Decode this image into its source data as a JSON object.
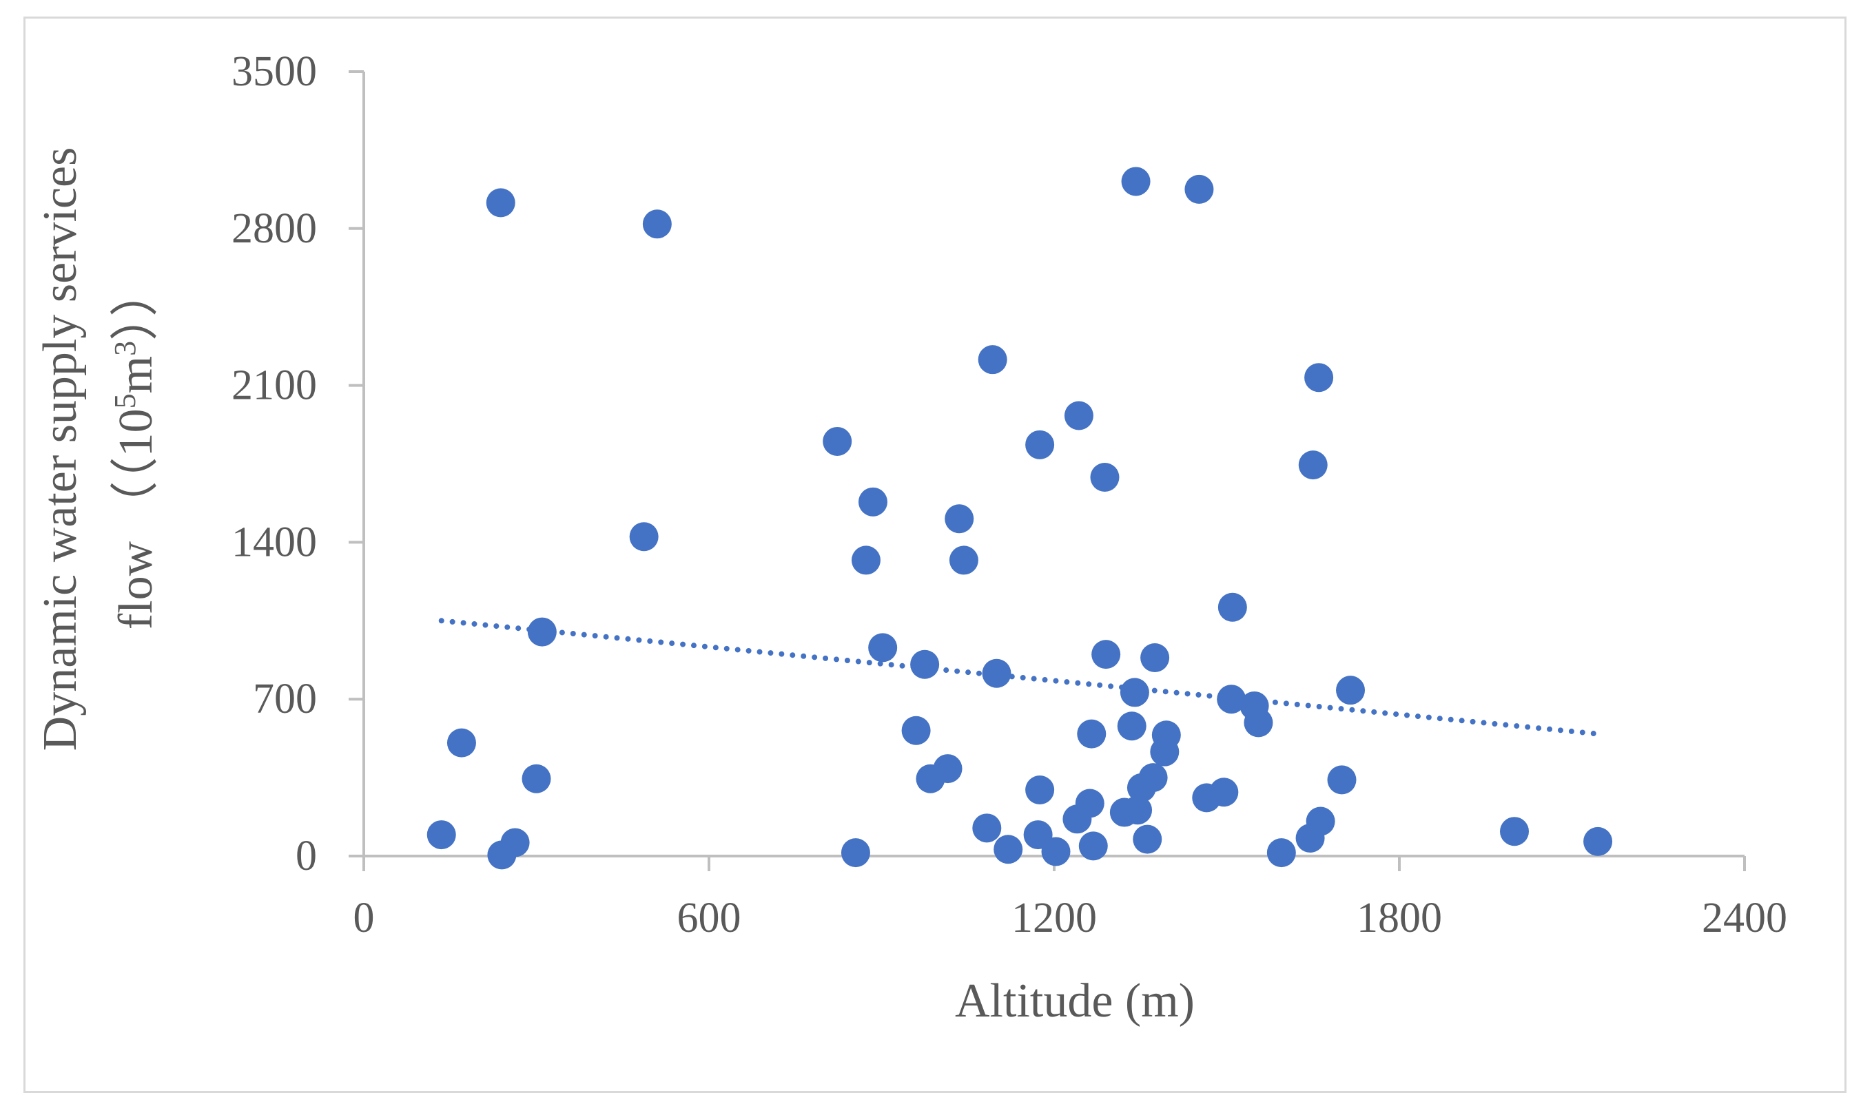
{
  "chart_data": {
    "type": "scatter",
    "xlabel": "Altitude (m)",
    "ylabel": {
      "line1": "Dynamic water supply services",
      "line2_prefix": "flow （（10",
      "line2_sup1": "5",
      "line2_mid": "m",
      "line2_sup2": "3",
      "line2_suffix": "））"
    },
    "xlim": [
      0,
      2400
    ],
    "ylim": [
      0,
      3500
    ],
    "xticks": [
      "0",
      "600",
      "1200",
      "1800",
      "2400"
    ],
    "xtick_values": [
      0,
      600,
      1200,
      1800,
      2400
    ],
    "yticks": [
      "0",
      "700",
      "1400",
      "2100",
      "2800",
      "3500"
    ],
    "ytick_values": [
      0,
      700,
      1400,
      2100,
      2800,
      3500
    ],
    "grid": false,
    "legend": "none",
    "marker_color": "#4472c4",
    "trendline": {
      "style": "dotted",
      "x": [
        135,
        2145
      ],
      "y": [
        1050,
        545
      ]
    },
    "points": [
      {
        "x": 135,
        "y": 95
      },
      {
        "x": 170,
        "y": 505
      },
      {
        "x": 238,
        "y": 2915
      },
      {
        "x": 240,
        "y": 5
      },
      {
        "x": 263,
        "y": 60
      },
      {
        "x": 300,
        "y": 345
      },
      {
        "x": 310,
        "y": 1000
      },
      {
        "x": 487,
        "y": 1425
      },
      {
        "x": 510,
        "y": 2820
      },
      {
        "x": 823,
        "y": 1850
      },
      {
        "x": 855,
        "y": 15
      },
      {
        "x": 873,
        "y": 1320
      },
      {
        "x": 885,
        "y": 1580
      },
      {
        "x": 902,
        "y": 930
      },
      {
        "x": 960,
        "y": 560
      },
      {
        "x": 975,
        "y": 855
      },
      {
        "x": 985,
        "y": 345
      },
      {
        "x": 1015,
        "y": 390
      },
      {
        "x": 1035,
        "y": 1505
      },
      {
        "x": 1043,
        "y": 1320
      },
      {
        "x": 1083,
        "y": 125
      },
      {
        "x": 1093,
        "y": 2215
      },
      {
        "x": 1100,
        "y": 815
      },
      {
        "x": 1120,
        "y": 30
      },
      {
        "x": 1172,
        "y": 95
      },
      {
        "x": 1175,
        "y": 295
      },
      {
        "x": 1175,
        "y": 1835
      },
      {
        "x": 1203,
        "y": 20
      },
      {
        "x": 1240,
        "y": 165
      },
      {
        "x": 1243,
        "y": 1965
      },
      {
        "x": 1262,
        "y": 235
      },
      {
        "x": 1265,
        "y": 545
      },
      {
        "x": 1268,
        "y": 45
      },
      {
        "x": 1288,
        "y": 1690
      },
      {
        "x": 1290,
        "y": 900
      },
      {
        "x": 1322,
        "y": 195
      },
      {
        "x": 1335,
        "y": 580
      },
      {
        "x": 1340,
        "y": 730
      },
      {
        "x": 1342,
        "y": 3010
      },
      {
        "x": 1345,
        "y": 205
      },
      {
        "x": 1352,
        "y": 305
      },
      {
        "x": 1362,
        "y": 75
      },
      {
        "x": 1372,
        "y": 350
      },
      {
        "x": 1375,
        "y": 885
      },
      {
        "x": 1392,
        "y": 465
      },
      {
        "x": 1395,
        "y": 540
      },
      {
        "x": 1452,
        "y": 2975
      },
      {
        "x": 1465,
        "y": 260
      },
      {
        "x": 1495,
        "y": 285
      },
      {
        "x": 1508,
        "y": 700
      },
      {
        "x": 1510,
        "y": 1110
      },
      {
        "x": 1548,
        "y": 670
      },
      {
        "x": 1555,
        "y": 595
      },
      {
        "x": 1595,
        "y": 15
      },
      {
        "x": 1645,
        "y": 80
      },
      {
        "x": 1650,
        "y": 1745
      },
      {
        "x": 1660,
        "y": 2135
      },
      {
        "x": 1663,
        "y": 155
      },
      {
        "x": 1700,
        "y": 340
      },
      {
        "x": 1715,
        "y": 740
      },
      {
        "x": 2000,
        "y": 110
      },
      {
        "x": 2145,
        "y": 65
      }
    ]
  }
}
